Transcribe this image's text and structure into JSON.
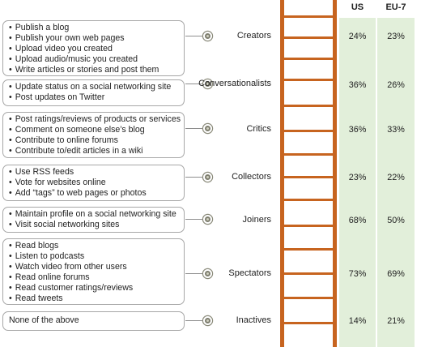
{
  "columns": [
    "US",
    "EU-7"
  ],
  "segments": [
    {
      "name": "Creators",
      "activities": [
        "Publish a blog",
        "Publish your own web pages",
        "Upload video you created",
        "Upload audio/music you created",
        "Write articles or stories and post them"
      ],
      "us": "24%",
      "eu7": "23%"
    },
    {
      "name": "Conversationalists",
      "activities": [
        "Update status on a social networking site",
        "Post updates on Twitter"
      ],
      "us": "36%",
      "eu7": "26%"
    },
    {
      "name": "Critics",
      "activities": [
        "Post ratings/reviews of products or services",
        "Comment on someone else’s blog",
        "Contribute to online forums",
        "Contribute to/edit articles in a wiki"
      ],
      "us": "36%",
      "eu7": "33%"
    },
    {
      "name": "Collectors",
      "activities": [
        "Use RSS feeds",
        "Vote for websites online",
        "Add “tags” to web pages or photos"
      ],
      "us": "23%",
      "eu7": "22%"
    },
    {
      "name": "Joiners",
      "activities": [
        "Maintain profile on a social networking site",
        "Visit social networking sites"
      ],
      "us": "68%",
      "eu7": "50%"
    },
    {
      "name": "Spectators",
      "activities": [
        "Read blogs",
        "Listen to podcasts",
        "Watch video from other users",
        "Read online forums",
        "Read customer ratings/reviews",
        "Read tweets"
      ],
      "us": "73%",
      "eu7": "69%"
    },
    {
      "name": "Inactives",
      "activities": [
        "None of the above"
      ],
      "us": "14%",
      "eu7": "21%"
    }
  ],
  "colors": {
    "ladder": "#c7641f",
    "table_fill": "#e2efda",
    "box_border": "#a7a7a7"
  }
}
